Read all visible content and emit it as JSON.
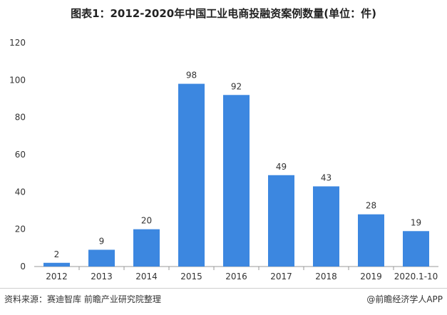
{
  "title": "图表1：2012-2020年中国工业电商投融资案例数量(单位：件)",
  "footer": {
    "source": "资料来源：赛迪智库  前瞻产业研究院整理",
    "brand": "@前瞻经济学人APP"
  },
  "colors": {
    "bar": "#3c87e0",
    "axis": "#999999",
    "text": "#333333"
  },
  "chart_data": {
    "type": "bar",
    "title": "图表1：2012-2020年中国工业电商投融资案例数量(单位：件)",
    "categories": [
      "2012",
      "2013",
      "2014",
      "2015",
      "2016",
      "2017",
      "2018",
      "2019",
      "2020.1-10"
    ],
    "values": [
      2,
      9,
      20,
      98,
      92,
      49,
      43,
      28,
      19
    ],
    "yticks": [
      0,
      20,
      40,
      60,
      80,
      100,
      120
    ],
    "ylim": [
      0,
      120
    ],
    "xlabel": "",
    "ylabel": "",
    "grid": false,
    "legend": "none"
  }
}
